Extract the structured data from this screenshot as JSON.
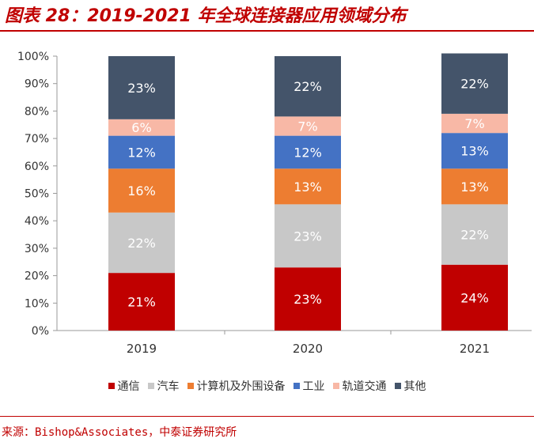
{
  "title": "图表 28：2019-2021 年全球连接器应用领域分布",
  "source": "来源：Bishop&Associates，中泰证券研究所",
  "chart_data": {
    "type": "bar",
    "stacked": true,
    "categories": [
      "2019",
      "2020",
      "2021"
    ],
    "series": [
      {
        "name": "通信",
        "color": "#c00000",
        "label_color": "#ffffff",
        "values": [
          21,
          23,
          24
        ],
        "labels": [
          "21%",
          "23%",
          "24%"
        ]
      },
      {
        "name": "汽车",
        "color": "#c8c8c8",
        "label_color": "#ffffff",
        "values": [
          22,
          23,
          22
        ],
        "labels": [
          "22%",
          "23%",
          "22%"
        ]
      },
      {
        "name": "计算机及外围设备",
        "color": "#ed7d31",
        "label_color": "#ffffff",
        "values": [
          16,
          13,
          13
        ],
        "labels": [
          "16%",
          "13%",
          "13%"
        ]
      },
      {
        "name": "工业",
        "color": "#4472c4",
        "label_color": "#ffffff",
        "values": [
          12,
          12,
          13
        ],
        "labels": [
          "12%",
          "12%",
          "13%"
        ]
      },
      {
        "name": "轨道交通",
        "color": "#f8b8a6",
        "label_color": "#ffffff",
        "values": [
          6,
          7,
          7
        ],
        "labels": [
          "6%",
          "7%",
          "7%"
        ]
      },
      {
        "name": "其他",
        "color": "#44546a",
        "label_color": "#ffffff",
        "values": [
          23,
          22,
          22
        ],
        "labels": [
          "23%",
          "22%",
          "22%"
        ]
      }
    ],
    "yticks": [
      "0%",
      "10%",
      "20%",
      "30%",
      "40%",
      "50%",
      "60%",
      "70%",
      "80%",
      "90%",
      "100%"
    ],
    "ylim": [
      0,
      100
    ],
    "grid": false,
    "legend_position": "bottom"
  }
}
